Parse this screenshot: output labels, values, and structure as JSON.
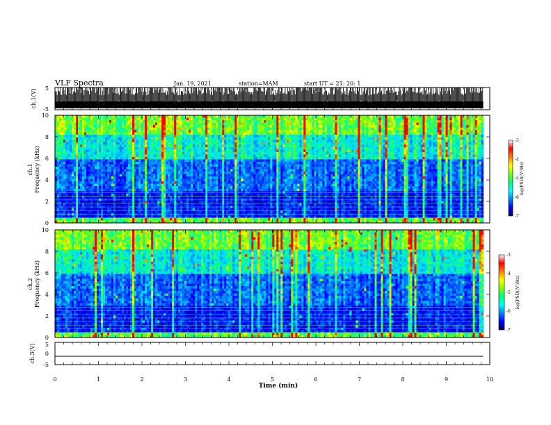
{
  "header": {
    "title": "VLF Spectra",
    "date": "Jan. 19, 2021",
    "station": "station=MAM",
    "start": "start UT =  21: 20: 1"
  },
  "colors": {
    "colormap": [
      "#000080",
      "#0000ff",
      "#0080ff",
      "#00ffff",
      "#00ff80",
      "#80ff00",
      "#ffff00",
      "#ff8000",
      "#ff0000",
      "#ffffff"
    ],
    "trace": "#000000"
  },
  "chart_data": [
    {
      "type": "line",
      "panel": "ch1-waveform",
      "ylabel": "ch.1(V)",
      "ylim": [
        -5,
        5
      ],
      "yticks": [
        "5",
        "-5"
      ],
      "xlim": [
        0,
        10
      ],
      "description_values": {
        "signal_range": [
          -5,
          5
        ],
        "pulse_interval_min": 0.045
      }
    },
    {
      "type": "heatmap",
      "panel": "ch1-spectrogram",
      "ylabel_line1": "ch.1",
      "ylabel_line2": "Frequency (kHz)",
      "ylim": [
        0,
        10
      ],
      "yticks": [
        "0",
        "2",
        "4",
        "6",
        "8",
        "10"
      ],
      "xlim": [
        0,
        10
      ],
      "data_end_min": 9.85,
      "colorbar": {
        "label": "log(PSD)(V²/Hz)",
        "range": [
          -7,
          -3
        ],
        "ticks": [
          "-3",
          "-4",
          "-5",
          "-6",
          "-7"
        ]
      }
    },
    {
      "type": "heatmap",
      "panel": "ch2-spectrogram",
      "ylabel_line1": "ch.2",
      "ylabel_line2": "Frequency (kHz)",
      "ylim": [
        0,
        10
      ],
      "yticks": [
        "0",
        "2",
        "4",
        "6",
        "8",
        "10"
      ],
      "xlim": [
        0,
        10
      ],
      "data_end_min": 9.85,
      "colorbar": {
        "label": "log(PSD)(V²/Hz)",
        "range": [
          -7,
          -3
        ],
        "ticks": [
          "-3",
          "-4",
          "-5",
          "-6",
          "-7"
        ]
      }
    },
    {
      "type": "line",
      "panel": "ch3-waveform",
      "ylabel": "ch.3(V)",
      "ylim": [
        -5,
        5
      ],
      "yticks": [
        "5",
        "0",
        "-5"
      ],
      "xlim": [
        0,
        10
      ],
      "x": [
        0,
        9.85
      ],
      "y": [
        -1.5,
        -1.5
      ]
    }
  ],
  "xaxis": {
    "label": "Time (min)",
    "ticks": [
      "0",
      "1",
      "2",
      "3",
      "4",
      "5",
      "6",
      "7",
      "8",
      "9",
      "10"
    ]
  }
}
